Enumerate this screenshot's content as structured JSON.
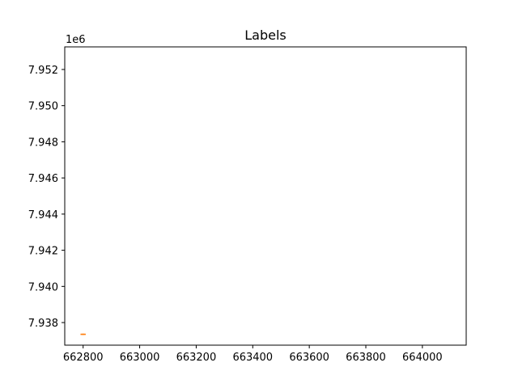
{
  "chart_data": {
    "type": "scatter",
    "title": "Labels",
    "xlabel": "",
    "ylabel": "",
    "y_offset_text": "1e6",
    "xlim": [
      662735,
      664155
    ],
    "ylim": [
      7.93675,
      7.95325
    ],
    "xticks": [
      662800,
      663000,
      663200,
      663400,
      663600,
      663800,
      664000
    ],
    "xtick_labels": [
      "662800",
      "663000",
      "663200",
      "663400",
      "663600",
      "663800",
      "664000"
    ],
    "yticks": [
      7.938,
      7.94,
      7.942,
      7.944,
      7.946,
      7.948,
      7.95,
      7.952
    ],
    "ytick_labels": [
      "7.938",
      "7.940",
      "7.942",
      "7.944",
      "7.946",
      "7.948",
      "7.950",
      "7.952"
    ],
    "grid": false,
    "series": [
      {
        "color": "#ff7f0e",
        "points": [
          {
            "x": 662795,
            "y": 7.93735
          },
          {
            "x": 662800,
            "y": 7.93735
          },
          {
            "x": 662805,
            "y": 7.93735
          }
        ]
      }
    ]
  }
}
